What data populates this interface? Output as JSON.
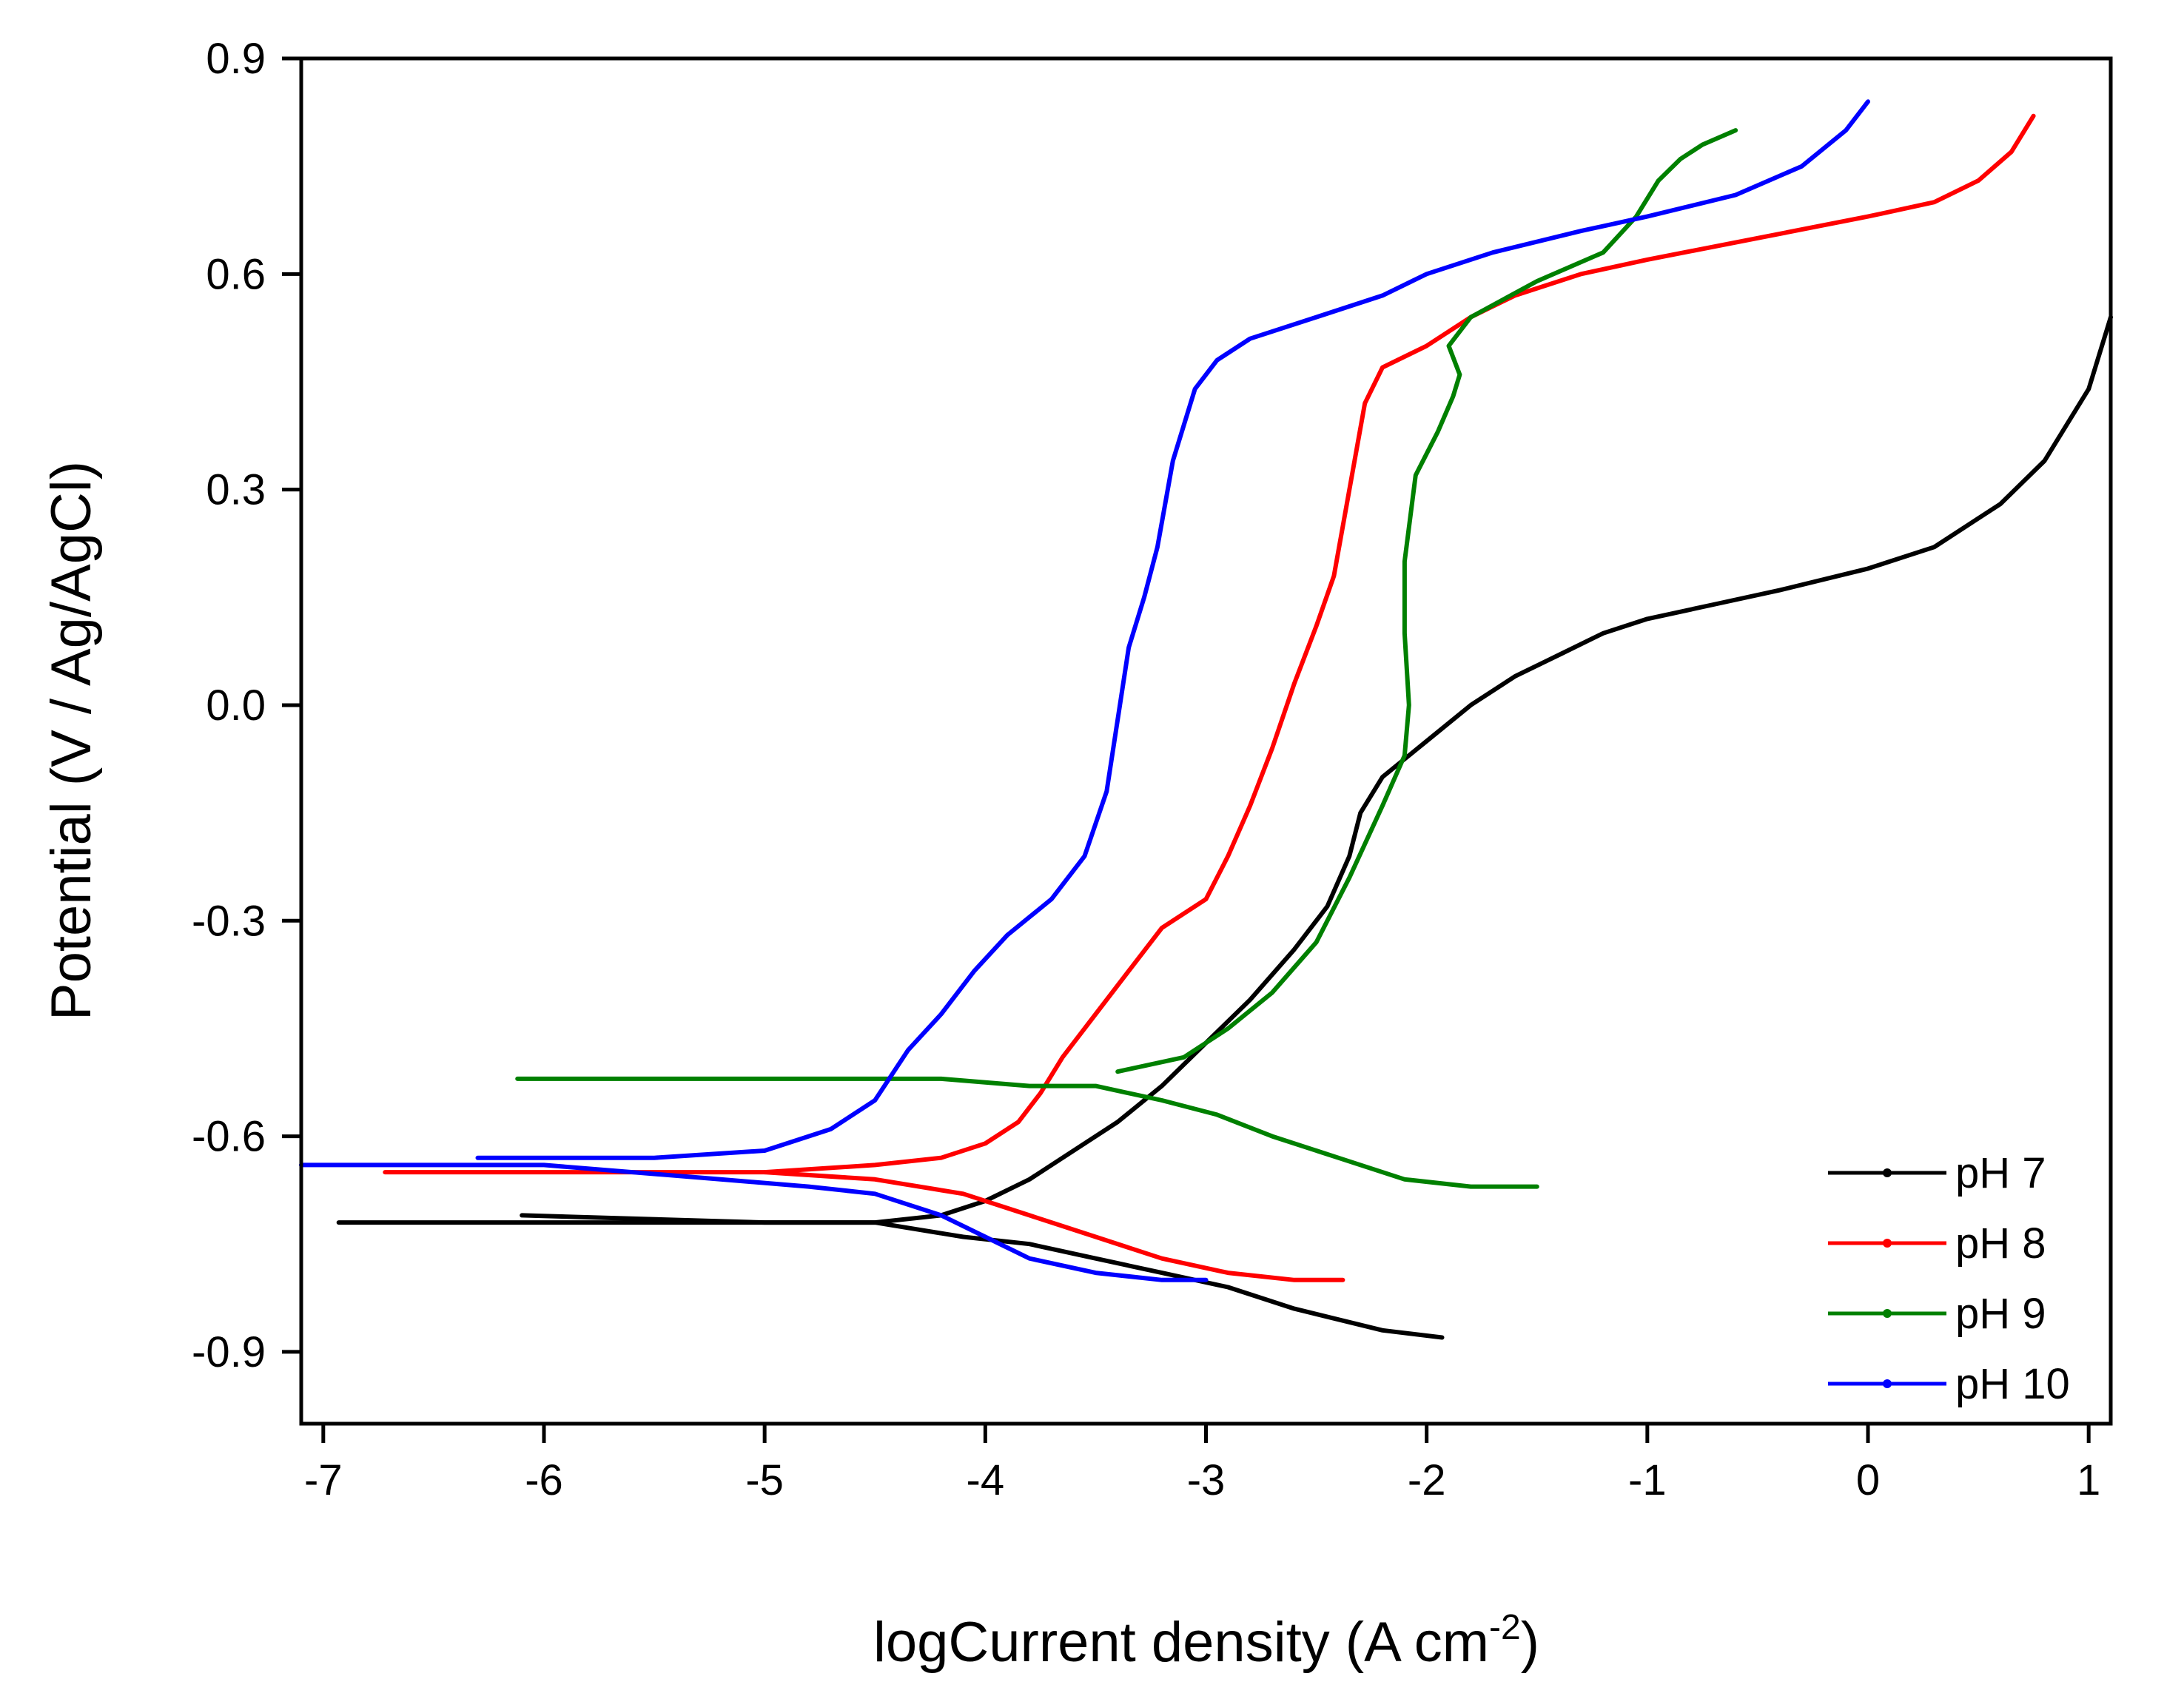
{
  "chart_data": {
    "type": "line",
    "title": "",
    "xlabel": "logCurrent density (A cm",
    "xlabel_unit_sup": "-2",
    "xlabel_close": ")",
    "ylabel": "Potential (V / Ag/AgCl)",
    "xlim": [
      -7.1,
      1.1
    ],
    "ylim": [
      -1.0,
      0.9
    ],
    "xticks": [
      -7,
      -6,
      -5,
      -4,
      -3,
      -2,
      -1,
      0,
      1
    ],
    "xtick_labels": [
      "-7",
      "-6",
      "-5",
      "-4",
      "-3",
      "-2",
      "-1",
      "0",
      "1"
    ],
    "yticks": [
      -0.9,
      -0.6,
      -0.3,
      0.0,
      0.3,
      0.6,
      0.9
    ],
    "ytick_labels": [
      "-0.9",
      "-0.6",
      "-0.3",
      "0.0",
      "0.3",
      "0.6",
      "0.9"
    ],
    "grid": false,
    "legend_position": "bottom-right",
    "series": [
      {
        "name": "pH 7",
        "color": "#000000",
        "cathodic": [
          [
            -1.93,
            -0.88
          ],
          [
            -2.2,
            -0.87
          ],
          [
            -2.6,
            -0.84
          ],
          [
            -2.9,
            -0.81
          ],
          [
            -3.2,
            -0.79
          ],
          [
            -3.5,
            -0.77
          ],
          [
            -3.8,
            -0.75
          ],
          [
            -4.1,
            -0.74
          ],
          [
            -4.3,
            -0.73
          ],
          [
            -4.5,
            -0.72
          ],
          [
            -5.0,
            -0.72
          ],
          [
            -6.0,
            -0.72
          ],
          [
            -6.93,
            -0.72
          ]
        ],
        "anodic": [
          [
            -6.1,
            -0.71
          ],
          [
            -5.0,
            -0.72
          ],
          [
            -4.5,
            -0.72
          ],
          [
            -4.2,
            -0.71
          ],
          [
            -4.0,
            -0.69
          ],
          [
            -3.8,
            -0.66
          ],
          [
            -3.6,
            -0.62
          ],
          [
            -3.4,
            -0.58
          ],
          [
            -3.2,
            -0.53
          ],
          [
            -3.0,
            -0.47
          ],
          [
            -2.8,
            -0.41
          ],
          [
            -2.6,
            -0.34
          ],
          [
            -2.45,
            -0.28
          ],
          [
            -2.35,
            -0.21
          ],
          [
            -2.3,
            -0.15
          ],
          [
            -2.2,
            -0.1
          ],
          [
            -2.0,
            -0.05
          ],
          [
            -1.8,
            0.0
          ],
          [
            -1.6,
            0.04
          ],
          [
            -1.4,
            0.07
          ],
          [
            -1.2,
            0.1
          ],
          [
            -1.0,
            0.12
          ],
          [
            -0.7,
            0.14
          ],
          [
            -0.4,
            0.16
          ],
          [
            0.0,
            0.19
          ],
          [
            0.3,
            0.22
          ],
          [
            0.6,
            0.28
          ],
          [
            0.8,
            0.34
          ],
          [
            1.0,
            0.44
          ],
          [
            1.1,
            0.54
          ]
        ]
      },
      {
        "name": "pH 8",
        "color": "#ff0000",
        "cathodic": [
          [
            -2.38,
            -0.8
          ],
          [
            -2.6,
            -0.8
          ],
          [
            -2.9,
            -0.79
          ],
          [
            -3.2,
            -0.77
          ],
          [
            -3.5,
            -0.74
          ],
          [
            -3.8,
            -0.71
          ],
          [
            -4.1,
            -0.68
          ],
          [
            -4.5,
            -0.66
          ],
          [
            -5.0,
            -0.65
          ],
          [
            -6.0,
            -0.65
          ],
          [
            -6.72,
            -0.65
          ]
        ],
        "anodic": [
          [
            -5.0,
            -0.65
          ],
          [
            -4.5,
            -0.64
          ],
          [
            -4.2,
            -0.63
          ],
          [
            -4.0,
            -0.61
          ],
          [
            -3.85,
            -0.58
          ],
          [
            -3.75,
            -0.54
          ],
          [
            -3.65,
            -0.49
          ],
          [
            -3.5,
            -0.43
          ],
          [
            -3.35,
            -0.37
          ],
          [
            -3.2,
            -0.31
          ],
          [
            -3.0,
            -0.27
          ],
          [
            -2.9,
            -0.21
          ],
          [
            -2.8,
            -0.14
          ],
          [
            -2.7,
            -0.06
          ],
          [
            -2.6,
            0.03
          ],
          [
            -2.5,
            0.11
          ],
          [
            -2.42,
            0.18
          ],
          [
            -2.35,
            0.3
          ],
          [
            -2.28,
            0.42
          ],
          [
            -2.2,
            0.47
          ],
          [
            -2.0,
            0.5
          ],
          [
            -1.8,
            0.54
          ],
          [
            -1.6,
            0.57
          ],
          [
            -1.3,
            0.6
          ],
          [
            -1.0,
            0.62
          ],
          [
            -0.5,
            0.65
          ],
          [
            0.0,
            0.68
          ],
          [
            0.3,
            0.7
          ],
          [
            0.5,
            0.73
          ],
          [
            0.65,
            0.77
          ],
          [
            0.75,
            0.82
          ]
        ]
      },
      {
        "name": "pH 9",
        "color": "#008000",
        "cathodic": [
          [
            -1.5,
            -0.67
          ],
          [
            -1.8,
            -0.67
          ],
          [
            -2.1,
            -0.66
          ],
          [
            -2.4,
            -0.63
          ],
          [
            -2.7,
            -0.6
          ],
          [
            -2.95,
            -0.57
          ],
          [
            -3.2,
            -0.55
          ],
          [
            -3.5,
            -0.53
          ],
          [
            -3.8,
            -0.53
          ],
          [
            -4.2,
            -0.52
          ],
          [
            -5.0,
            -0.52
          ],
          [
            -6.12,
            -0.52
          ]
        ],
        "anodic": [
          [
            -3.4,
            -0.51
          ],
          [
            -3.1,
            -0.49
          ],
          [
            -2.9,
            -0.45
          ],
          [
            -2.7,
            -0.4
          ],
          [
            -2.5,
            -0.33
          ],
          [
            -2.35,
            -0.24
          ],
          [
            -2.2,
            -0.14
          ],
          [
            -2.1,
            -0.07
          ],
          [
            -2.08,
            0.0
          ],
          [
            -2.1,
            0.1
          ],
          [
            -2.1,
            0.2
          ],
          [
            -2.05,
            0.32
          ],
          [
            -1.95,
            0.38
          ],
          [
            -1.88,
            0.43
          ],
          [
            -1.85,
            0.46
          ],
          [
            -1.9,
            0.5
          ],
          [
            -1.8,
            0.54
          ],
          [
            -1.5,
            0.59
          ],
          [
            -1.2,
            0.63
          ],
          [
            -1.05,
            0.68
          ],
          [
            -0.95,
            0.73
          ],
          [
            -0.85,
            0.76
          ],
          [
            -0.75,
            0.78
          ],
          [
            -0.6,
            0.8
          ]
        ]
      },
      {
        "name": "pH 10",
        "color": "#0000ff",
        "cathodic": [
          [
            -3.0,
            -0.8
          ],
          [
            -3.2,
            -0.8
          ],
          [
            -3.5,
            -0.79
          ],
          [
            -3.8,
            -0.77
          ],
          [
            -4.0,
            -0.74
          ],
          [
            -4.2,
            -0.71
          ],
          [
            -4.5,
            -0.68
          ],
          [
            -4.8,
            -0.67
          ],
          [
            -5.2,
            -0.66
          ],
          [
            -6.0,
            -0.64
          ],
          [
            -7.1,
            -0.64
          ]
        ],
        "anodic": [
          [
            -6.3,
            -0.63
          ],
          [
            -5.5,
            -0.63
          ],
          [
            -5.0,
            -0.62
          ],
          [
            -4.7,
            -0.59
          ],
          [
            -4.5,
            -0.55
          ],
          [
            -4.35,
            -0.48
          ],
          [
            -4.2,
            -0.43
          ],
          [
            -4.05,
            -0.37
          ],
          [
            -3.9,
            -0.32
          ],
          [
            -3.7,
            -0.27
          ],
          [
            -3.55,
            -0.21
          ],
          [
            -3.45,
            -0.12
          ],
          [
            -3.4,
            -0.02
          ],
          [
            -3.35,
            0.08
          ],
          [
            -3.28,
            0.15
          ],
          [
            -3.22,
            0.22
          ],
          [
            -3.15,
            0.34
          ],
          [
            -3.05,
            0.44
          ],
          [
            -2.95,
            0.48
          ],
          [
            -2.8,
            0.51
          ],
          [
            -2.5,
            0.54
          ],
          [
            -2.2,
            0.57
          ],
          [
            -2.0,
            0.6
          ],
          [
            -1.7,
            0.63
          ],
          [
            -1.3,
            0.66
          ],
          [
            -1.0,
            0.68
          ],
          [
            -0.6,
            0.71
          ],
          [
            -0.3,
            0.75
          ],
          [
            -0.1,
            0.8
          ],
          [
            0.0,
            0.84
          ]
        ]
      }
    ]
  }
}
